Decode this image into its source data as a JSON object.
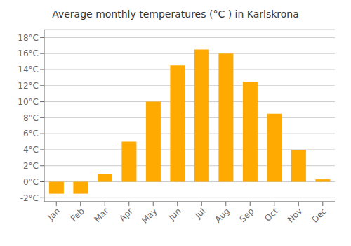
{
  "chart_data": {
    "type": "bar",
    "title": "Average monthly temperatures (°C ) in Karlskrona",
    "categories": [
      "Jan",
      "Feb",
      "Mar",
      "Apr",
      "May",
      "Jun",
      "Jul",
      "Aug",
      "Sep",
      "Oct",
      "Nov",
      "Dec"
    ],
    "values": [
      -1.5,
      -1.5,
      1.0,
      5.0,
      10.0,
      14.5,
      16.5,
      16.0,
      12.5,
      8.5,
      4.0,
      0.3
    ],
    "color": "#FFAA00",
    "ylim": [
      -2.5,
      19
    ],
    "yticks": [
      {
        "value": -2,
        "label": "-2°C"
      },
      {
        "value": 0,
        "label": "0°C"
      },
      {
        "value": 2,
        "label": "2°C"
      },
      {
        "value": 4,
        "label": "4°C"
      },
      {
        "value": 6,
        "label": "6°C"
      },
      {
        "value": 8,
        "label": "8°C"
      },
      {
        "value": 10,
        "label": "10°C"
      },
      {
        "value": 12,
        "label": "12°C"
      },
      {
        "value": 14,
        "label": "14°C"
      },
      {
        "value": 16,
        "label": "16°C"
      },
      {
        "value": 18,
        "label": "18°C"
      }
    ],
    "grid": true
  }
}
